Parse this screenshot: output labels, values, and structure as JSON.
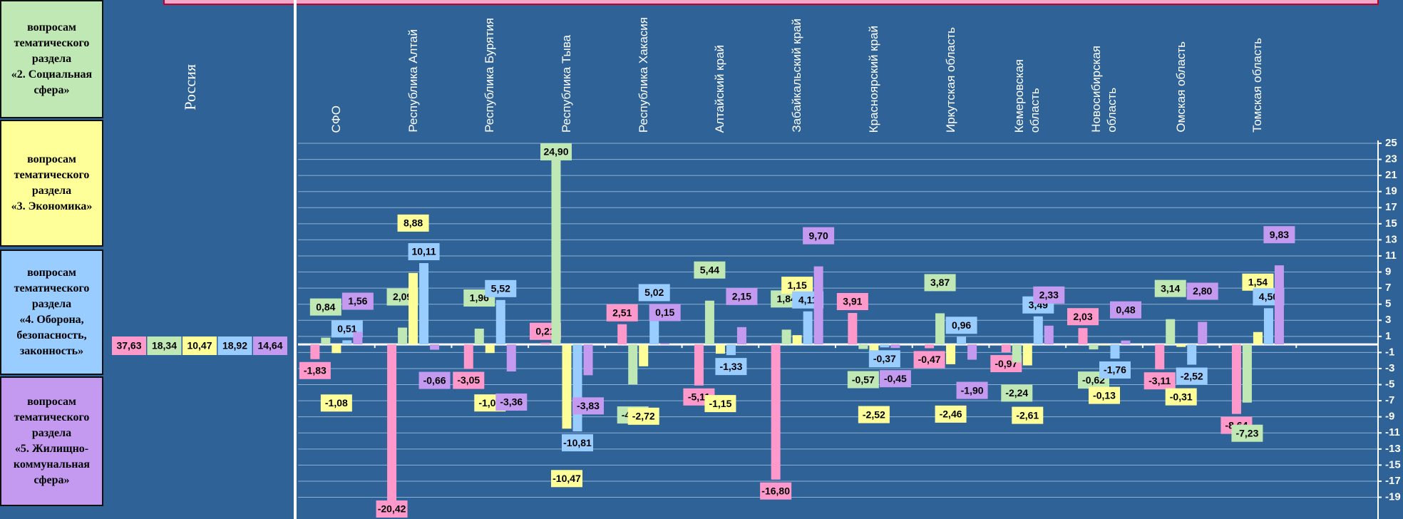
{
  "chart_data": {
    "type": "bar",
    "russia": {
      "label": "Россия",
      "values": [
        37.63,
        18.34,
        10.47,
        18.92,
        14.64
      ],
      "value_labels": [
        "37,63",
        "18,34",
        "10,47",
        "18,92",
        "14,64"
      ]
    },
    "categories": [
      "СФО",
      "Республика Алтай",
      "Республика Бурятия",
      "Республика Тыва",
      "Республика Хакасия",
      "Алтайский край",
      "Забайкальский край",
      "Красноярский край",
      "Иркутская область",
      "Кемеровская\nобласть",
      "Новосибирская\nобласть",
      "Омская область",
      "Томская область"
    ],
    "series": [
      {
        "color": "#ff99cc",
        "values": [
          -1.83,
          -20.42,
          -3.05,
          0.21,
          2.51,
          -5.11,
          -16.8,
          3.91,
          -0.47,
          -0.97,
          2.03,
          -3.11,
          -8.64
        ],
        "value_labels": [
          "-1,83",
          "-20,42",
          "-3,05",
          "0,21",
          "2,51",
          "-5,11",
          "-16,80",
          "3,91",
          "-0,47",
          "-0,97",
          "2,03",
          "-3,11",
          "-8,64"
        ]
      },
      {
        "name": "вопросам\nтематического\nраздела\n«2. Социальная\nсфера»",
        "color": "#bfe8b4",
        "values": [
          0.84,
          2.09,
          1.96,
          24.9,
          -4.96,
          5.44,
          1.84,
          -0.57,
          3.87,
          -2.24,
          -0.62,
          3.14,
          -7.23
        ],
        "value_labels": [
          "0,84",
          "2,09",
          "1,96",
          "24,90",
          "-4,96",
          "5,44",
          "1,84",
          "-0,57",
          "3,87",
          "-2,24",
          "-0,62",
          "3,14",
          "-7,23"
        ]
      },
      {
        "name": "вопросам\nтематического\nраздела\n«3. Экономика»",
        "color": "#ffff99",
        "values": [
          -1.08,
          8.88,
          -1.07,
          -10.47,
          -2.72,
          -1.15,
          1.15,
          -2.52,
          -2.46,
          -2.61,
          -0.13,
          -0.31,
          1.54
        ],
        "value_labels": [
          "-1,08",
          "8,88",
          "-1,07",
          "-10,47",
          "-2,72",
          "-1,15",
          "1,15",
          "-2,52",
          "-2,46",
          "-2,61",
          "-0,13",
          "-0,31",
          "1,54"
        ]
      },
      {
        "name": "вопросам\nтематического\nраздела\n«4. Оборона,\nбезопасность,\nзаконность»",
        "color": "#99ccff",
        "values": [
          0.51,
          10.11,
          5.52,
          -10.81,
          5.02,
          -1.33,
          4.11,
          -0.37,
          0.96,
          3.49,
          -1.76,
          -2.52,
          4.5
        ],
        "value_labels": [
          "0,51",
          "10,11",
          "5,52",
          "-10,81",
          "5,02",
          "-1,33",
          "4,11",
          "-0,37",
          "0,96",
          "3,49",
          "-1,76",
          "-2,52",
          "4,50"
        ]
      },
      {
        "name": "вопросам\nтематического\nраздела\n«5. Жилищно-\nкоммунальная\nсфера»",
        "color": "#c39af0",
        "values": [
          1.56,
          -0.66,
          -3.36,
          -3.83,
          0.15,
          2.15,
          9.7,
          -0.45,
          -1.9,
          2.33,
          0.48,
          2.8,
          9.83
        ],
        "value_labels": [
          "1,56",
          "-0,66",
          "-3,36",
          "-3,83",
          "0,15",
          "2,15",
          "9,70",
          "-0,45",
          "-1,90",
          "2,33",
          "0,48",
          "2,80",
          "9,83"
        ]
      }
    ],
    "ylim": [
      -21.7,
      25
    ],
    "yticks": [
      25,
      23,
      21,
      19,
      17,
      15,
      13,
      11,
      9,
      7,
      5,
      3,
      1,
      -1,
      -3,
      -5,
      -7,
      -9,
      -11,
      -13,
      -15,
      -17,
      -19
    ],
    "grid": true
  }
}
